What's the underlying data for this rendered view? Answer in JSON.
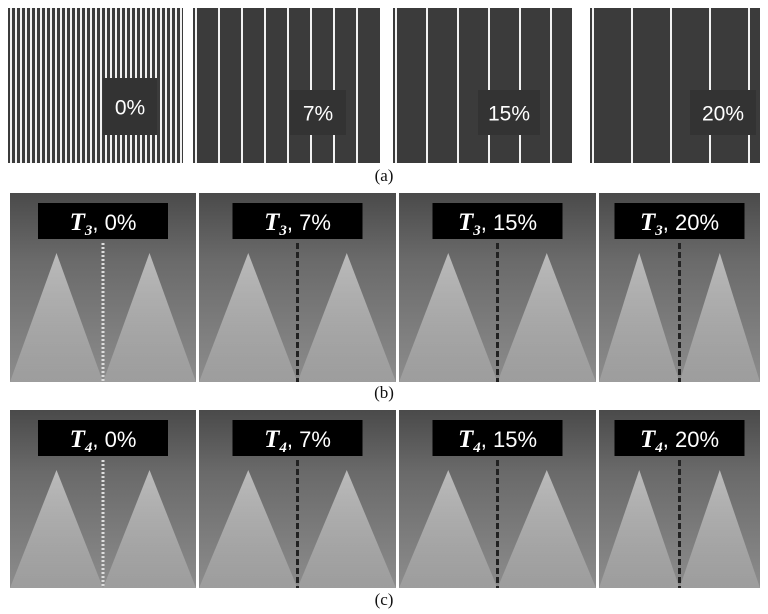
{
  "panel_a": {
    "labels": [
      "0%",
      "7%",
      "15%",
      "20%"
    ],
    "caption": "(a)"
  },
  "panel_b": {
    "labels": [
      {
        "symbol": "T",
        "subscript": "3",
        "text": ", 0%"
      },
      {
        "symbol": "T",
        "subscript": "3",
        "text": ", 7%"
      },
      {
        "symbol": "T",
        "subscript": "3",
        "text": ", 15%"
      },
      {
        "symbol": "T",
        "subscript": "3",
        "text": ", 20%"
      }
    ],
    "caption": "(b)"
  },
  "panel_c": {
    "labels": [
      {
        "symbol": "T",
        "subscript": "4",
        "text": ", 0%"
      },
      {
        "symbol": "T",
        "subscript": "4",
        "text": ", 7%"
      },
      {
        "symbol": "T",
        "subscript": "4",
        "text": ", 15%"
      },
      {
        "symbol": "T",
        "subscript": "4",
        "text": ", 20%"
      }
    ],
    "caption": "(c)"
  }
}
